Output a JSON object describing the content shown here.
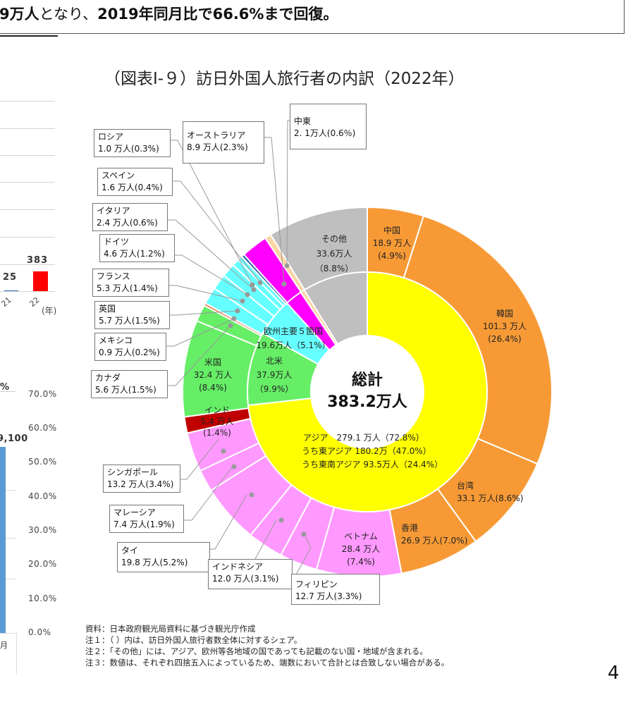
{
  "headline": {
    "part1": "9万人",
    "part2": "となり、",
    "part3": "2019年同月比で66.6%まで回復。"
  },
  "left_chart": {
    "bar_value_labels": [
      "25",
      "383"
    ],
    "x_tick_labels": [
      "21",
      "22"
    ],
    "x_unit": "(年)",
    "lower_value_label": "9,100",
    "lower_partial_pct": "%",
    "y2_ticks": [
      "70.0%",
      "60.0%",
      "50.0%",
      "40.0%",
      "30.0%",
      "20.0%",
      "10.0%",
      "0.0%"
    ],
    "month_label": "月",
    "colors": {
      "bar_2022": "#ff0000",
      "bar_lower": "#5b9bd5"
    }
  },
  "chart_data": {
    "type": "pie",
    "title": "（図表Ⅰ-９）訪日外国人旅行者の内訳（2022年）",
    "center_label": "総計",
    "center_value": "383.2万人",
    "unit": "万人",
    "inner_ring": [
      {
        "name": "アジア",
        "value": 279.1,
        "share": 72.8,
        "color": "#ffff00"
      },
      {
        "name": "北米",
        "value": 37.9,
        "share": 9.9,
        "color": "#66ee66"
      },
      {
        "name": "欧州主要５箇国",
        "value": 19.6,
        "share": 5.1,
        "color": "#66ffff"
      },
      {
        "name": "オーストラリア",
        "value": 8.9,
        "share": 2.3,
        "color": "#ff00ff"
      },
      {
        "name": "中東",
        "value": 2.1,
        "share": 0.6,
        "color": "#fbd5a5"
      },
      {
        "name": "その他",
        "value": 33.6,
        "share": 8.8,
        "color": "#bfbfbf"
      }
    ],
    "outer_ring": [
      {
        "name": "中国",
        "value": 18.9,
        "share": 4.9,
        "color": "#f79a36"
      },
      {
        "name": "韓国",
        "value": 101.3,
        "share": 26.4,
        "color": "#f79a36"
      },
      {
        "name": "台湾",
        "value": 33.1,
        "share": 8.6,
        "color": "#f79a36"
      },
      {
        "name": "香港",
        "value": 26.9,
        "share": 7.0,
        "color": "#f79a36"
      },
      {
        "name": "ベトナム",
        "value": 28.4,
        "share": 7.4,
        "color": "#ff99ff"
      },
      {
        "name": "フィリピン",
        "value": 12.7,
        "share": 3.3,
        "color": "#ff99ff"
      },
      {
        "name": "インドネシア",
        "value": 12.0,
        "share": 3.1,
        "color": "#ff99ff"
      },
      {
        "name": "タイ",
        "value": 19.8,
        "share": 5.2,
        "color": "#ff99ff"
      },
      {
        "name": "マレーシア",
        "value": 7.4,
        "share": 1.9,
        "color": "#ff99ff"
      },
      {
        "name": "シンガポール",
        "value": 13.2,
        "share": 3.4,
        "color": "#ff99ff"
      },
      {
        "name": "インド",
        "value": 5.4,
        "share": 1.4,
        "color": "#c00000"
      },
      {
        "name": "米国",
        "value": 32.4,
        "share": 8.4,
        "color": "#66ee66"
      },
      {
        "name": "カナダ",
        "value": 5.6,
        "share": 1.5,
        "color": "#66ee66"
      },
      {
        "name": "メキシコ",
        "value": 0.9,
        "share": 0.2,
        "color": "#e8825a"
      },
      {
        "name": "英国",
        "value": 5.7,
        "share": 1.5,
        "color": "#66ffff"
      },
      {
        "name": "フランス",
        "value": 5.3,
        "share": 1.4,
        "color": "#66ffff"
      },
      {
        "name": "ドイツ",
        "value": 4.6,
        "share": 1.2,
        "color": "#66ffff"
      },
      {
        "name": "イタリア",
        "value": 2.4,
        "share": 0.6,
        "color": "#66ffff"
      },
      {
        "name": "スペイン",
        "value": 1.6,
        "share": 0.4,
        "color": "#66ffff"
      },
      {
        "name": "ロシア",
        "value": 1.0,
        "share": 0.3,
        "color": "#2e5fa8"
      },
      {
        "name": "オーストラリア",
        "value": 8.9,
        "share": 2.3,
        "color": "#ff00ff"
      },
      {
        "name": "中東",
        "value": 2.1,
        "share": 0.6,
        "color": "#fbd5a5"
      },
      {
        "name": "その他",
        "value": 33.6,
        "share": 8.8,
        "color": "#bfbfbf"
      }
    ],
    "asia_breakdown": [
      "アジア　279.1 万人（72.8%）",
      "うち東アジア 180.2万（47.0%）",
      "うち東南アジア 93.5万人（24.4%）"
    ]
  },
  "callouts": {
    "russia": {
      "name": "ロシア",
      "value": "1.0 万人(0.3%)"
    },
    "australia": {
      "name": "オーストラリア",
      "value": "8.9 万人(2.3%)"
    },
    "middle_east": {
      "name": "中東",
      "value": "2. 1万人(0.6％)"
    },
    "spain": {
      "name": "スペイン",
      "value": "1.6 万人(0.4%)"
    },
    "italy": {
      "name": "イタリア",
      "value": "2.4 万人(0.6%)"
    },
    "germany": {
      "name": "ドイツ",
      "value": "4.6 万人(1.2%)"
    },
    "france": {
      "name": "フランス",
      "value": "5.3 万人(1.4%)"
    },
    "uk": {
      "name": "英国",
      "value": "5.7 万人(1.5%)"
    },
    "mexico": {
      "name": "メキシコ",
      "value": "0.9 万人(0.2%)"
    },
    "canada": {
      "name": "カナダ",
      "value": "5.6 万人(1.5%)"
    },
    "singapore": {
      "name": "シンガポール",
      "value": "13.2 万人(3.4%)"
    },
    "malaysia": {
      "name": "マレーシア",
      "value": "7.4 万人(1.9%)"
    },
    "thailand": {
      "name": "タイ",
      "value": "19.8 万人(5.2%)"
    },
    "indonesia": {
      "name": "インドネシア",
      "value": "12.0 万人(3.1%)"
    },
    "philippines": {
      "name": "フィリピン",
      "value": "12.7 万人(3.3%)"
    }
  },
  "segment_labels": {
    "other": [
      "その他",
      "33.6万人",
      "（8.8%）"
    ],
    "china": [
      "中国",
      "18.9 万人",
      "(4.9%)"
    ],
    "korea": [
      "韓国",
      "101.3 万人",
      "(26.4%)"
    ],
    "taiwan": [
      "台湾",
      "33.1 万人(8.6%)"
    ],
    "hongkong": [
      "香港",
      "26.9 万人(7.0%)"
    ],
    "vietnam": [
      "ベトナム",
      "28.4 万人",
      "(7.4%)"
    ],
    "india": [
      "インド",
      "5.4 万人",
      "(1.4%)"
    ],
    "usa": [
      "米国",
      "32.4 万人",
      "(8.4%)"
    ],
    "north_america": [
      "北米",
      "37.9万人",
      "（9.9%）"
    ],
    "europe5": [
      "欧州主要５箇国",
      "19.6万人（5.1%）"
    ]
  },
  "notes": [
    "資料：日本政府観光局資料に基づき観光庁作成",
    "注１：（ ）内は、訪日外国人旅行者数全体に対するシェア。",
    "注２：「その他」には、アジア、欧州等各地域の国であっても記載のない国・地域が含まれる。",
    "注３：数値は、それぞれ四捨五入によっているため、端数において合計とは合致しない場合がある。"
  ],
  "page_number": "4"
}
